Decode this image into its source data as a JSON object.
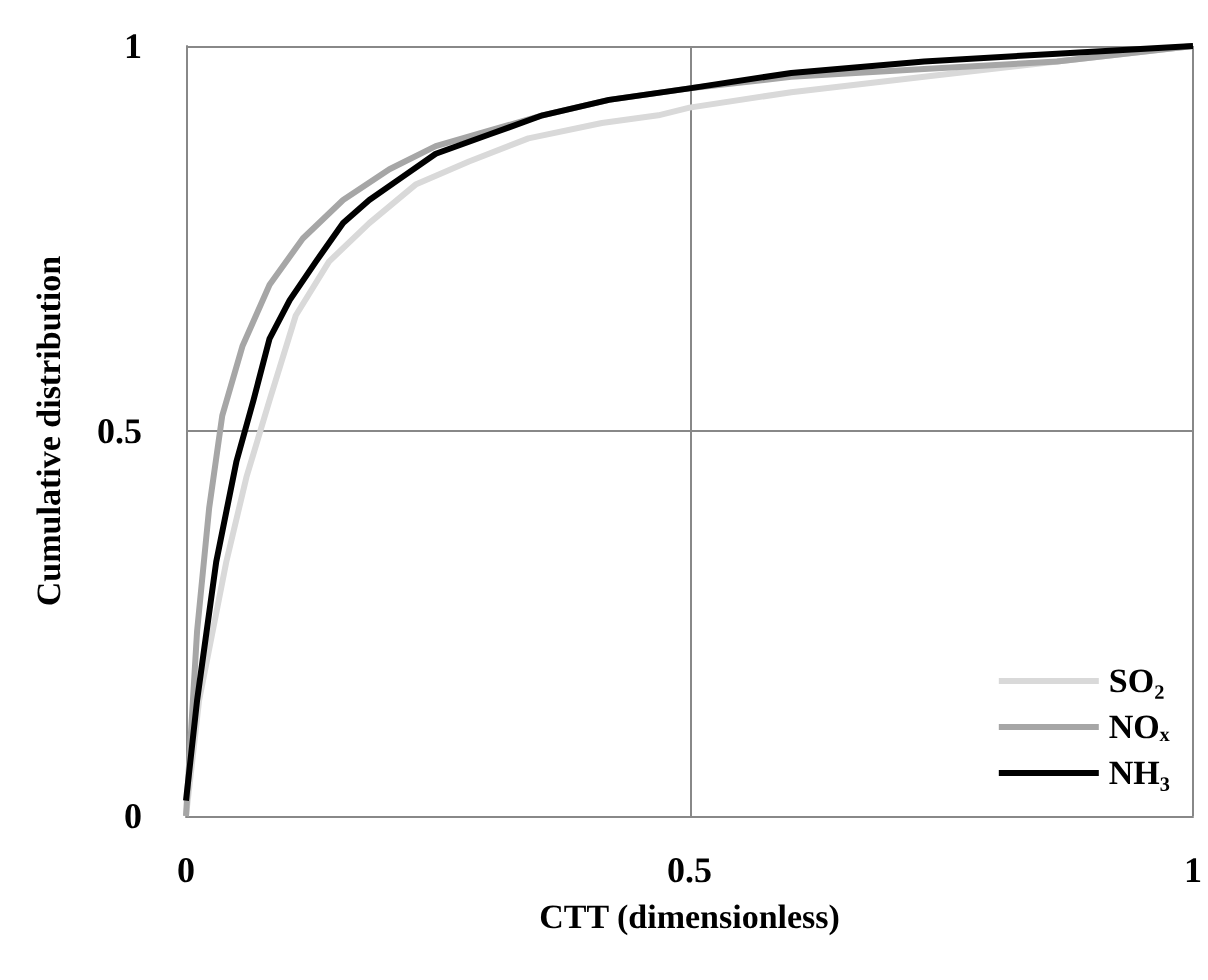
{
  "chart_data": {
    "type": "line",
    "xlabel": "CTT (dimensionless)",
    "ylabel": "Cumulative distribution",
    "xlim": [
      0,
      1
    ],
    "ylim": [
      0,
      1
    ],
    "xticks": [
      0,
      0.5,
      1
    ],
    "yticks": [
      0,
      0.5,
      1
    ],
    "grid": true,
    "legend": "bottom right",
    "marker": "none",
    "line_style": "solid",
    "series": [
      {
        "name": "SO₂",
        "color": "#d9d9d9",
        "x": [
          0,
          0.013,
          0.04,
          0.06,
          0.083,
          0.109,
          0.142,
          0.182,
          0.228,
          0.281,
          0.34,
          0.413,
          0.469,
          0.5,
          0.601,
          0.733,
          0.865,
          1
        ],
        "values": [
          0,
          0.15,
          0.33,
          0.44,
          0.54,
          0.65,
          0.72,
          0.77,
          0.82,
          0.85,
          0.88,
          0.9,
          0.91,
          0.92,
          0.94,
          0.96,
          0.98,
          1
        ]
      },
      {
        "name": "NOₓ",
        "color": "#a6a6a6",
        "x": [
          0,
          0.011,
          0.023,
          0.036,
          0.056,
          0.083,
          0.116,
          0.156,
          0.202,
          0.248,
          0.301,
          0.354,
          0.42,
          0.5,
          0.601,
          0.733,
          0.865,
          1
        ],
        "values": [
          0,
          0.24,
          0.4,
          0.52,
          0.61,
          0.69,
          0.75,
          0.8,
          0.84,
          0.87,
          0.89,
          0.91,
          0.93,
          0.945,
          0.96,
          0.97,
          0.98,
          1
        ]
      },
      {
        "name": "NH₃",
        "color": "#000000",
        "x": [
          0,
          0.011,
          0.03,
          0.05,
          0.067,
          0.083,
          0.103,
          0.129,
          0.156,
          0.182,
          0.215,
          0.248,
          0.301,
          0.354,
          0.42,
          0.5,
          0.601,
          0.733,
          0.865,
          1
        ],
        "values": [
          0.02,
          0.15,
          0.33,
          0.46,
          0.54,
          0.62,
          0.67,
          0.72,
          0.77,
          0.8,
          0.83,
          0.86,
          0.885,
          0.91,
          0.93,
          0.945,
          0.965,
          0.98,
          0.99,
          1
        ]
      }
    ]
  }
}
